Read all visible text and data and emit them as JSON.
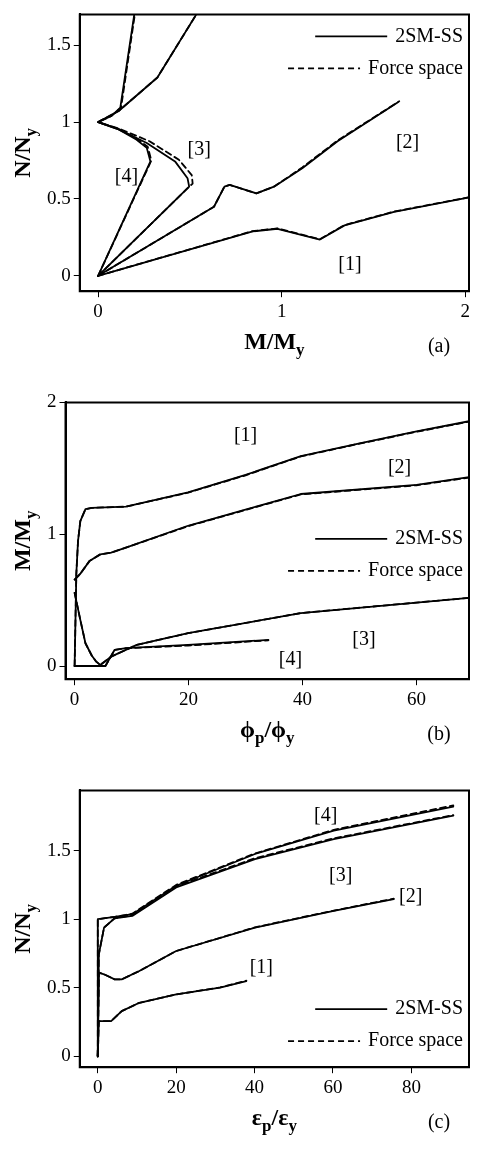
{
  "chart_data": [
    {
      "type": "line",
      "xlabel": "M/M$_{y}$",
      "ylabel": "N/N$_{y}$",
      "xlim": [
        -0.1,
        2.02
      ],
      "ylim": [
        -0.1,
        1.7
      ],
      "xticks": [
        0,
        1,
        2
      ],
      "yticks": [
        0,
        0.5,
        1,
        1.5
      ],
      "legend": "top right",
      "annotations": [
        "[1]",
        "[2]",
        "[3]",
        "[4]",
        "(a)"
      ],
      "series": [
        {
          "name": "2SM-SS",
          "color": "#000000",
          "line_style": "solid",
          "x": [
            0,
            0.842,
            0.977,
            1.208,
            1.342,
            1.612,
            2.015
          ],
          "values": [
            0,
            0.289,
            0.306,
            0.236,
            0.328,
            0.416,
            0.508
          ]
        },
        {
          "color": "#000000",
          "line_style": "solid",
          "x": [
            0,
            0.631,
            0.688,
            0.717,
            0.862,
            0.958,
            1.112,
            1.304,
            1.631
          ],
          "values": [
            0,
            0.449,
            0.58,
            0.591,
            0.536,
            0.58,
            0.7,
            0.875,
            1.127
          ]
        },
        {
          "color": "#000000",
          "line_style": "solid",
          "x": [
            0,
            0.496,
            0.487,
            0.419,
            0.265,
            0.112,
            0,
            0.112,
            0.323,
            0.535
          ],
          "values": [
            0,
            0.58,
            0.635,
            0.744,
            0.864,
            0.952,
            1,
            1.072,
            1.29,
            1.7
          ]
        },
        {
          "color": "#000000",
          "line_style": "solid",
          "x": [
            0,
            0.285,
            0.265,
            0.208,
            0.112,
            0,
            0.073,
            0.121,
            0.197
          ],
          "values": [
            0,
            0.744,
            0.832,
            0.886,
            0.952,
            1,
            1.04,
            1.094,
            1.7
          ]
        },
        {
          "name": "Force space",
          "color": "#000000",
          "line_style": "dashed",
          "x": [
            0,
            0.842,
            0.977,
            1.208,
            1.342,
            1.612,
            2.015
          ],
          "values": [
            0,
            0.291,
            0.308,
            0.238,
            0.33,
            0.418,
            0.51
          ]
        },
        {
          "color": "#000000",
          "line_style": "dashed",
          "x": [
            0,
            0.631,
            0.688,
            0.717,
            0.862,
            0.958,
            1.112,
            1.304,
            1.64
          ],
          "values": [
            0,
            0.449,
            0.58,
            0.591,
            0.536,
            0.58,
            0.705,
            0.88,
            1.135
          ]
        },
        {
          "color": "#000000",
          "line_style": "dashed",
          "x": [
            0,
            0.496,
            0.515,
            0.51,
            0.44,
            0.28,
            0.112,
            0,
            0.112,
            0.323,
            0.535
          ],
          "values": [
            0,
            0.58,
            0.6,
            0.655,
            0.755,
            0.875,
            0.958,
            1,
            1.072,
            1.29,
            1.7
          ]
        },
        {
          "color": "#000000",
          "line_style": "dashed",
          "x": [
            0,
            0.29,
            0.27,
            0.21,
            0.112,
            0,
            0.073,
            0.125,
            0.2
          ],
          "values": [
            0,
            0.75,
            0.84,
            0.892,
            0.955,
            1,
            1.04,
            1.094,
            1.7
          ]
        }
      ]
    },
    {
      "type": "line",
      "xlabel": "ϕ$_{p}$/ϕ$_{y}$",
      "ylabel": "M/M$_{y}$",
      "xlim": [
        -1.6,
        69.2
      ],
      "ylim": [
        -0.1,
        2
      ],
      "xticks": [
        0,
        20,
        40,
        60
      ],
      "yticks": [
        0,
        1,
        2
      ],
      "legend": "right",
      "annotations": [
        "[1]",
        "[2]",
        "[3]",
        "[4]",
        "(b)"
      ],
      "series": [
        {
          "name": "2SM-SS",
          "color": "#000000",
          "line_style": "solid",
          "x": [
            0,
            0.3,
            0.6,
            1,
            1.9,
            3,
            9,
            19.9,
            30,
            39.7,
            50,
            60,
            69.2
          ],
          "values": [
            0,
            0.7,
            0.95,
            1.1,
            1.19,
            1.2,
            1.209,
            1.318,
            1.45,
            1.593,
            1.69,
            1.78,
            1.857
          ]
        },
        {
          "color": "#000000",
          "line_style": "solid",
          "x": [
            0,
            1,
            2.6,
            4.5,
            6.4,
            9,
            19.9,
            39.7,
            60,
            69.2
          ],
          "values": [
            0.656,
            0.7,
            0.796,
            0.847,
            0.86,
            0.898,
            1.064,
            1.305,
            1.374,
            1.433
          ]
        },
        {
          "color": "#000000",
          "line_style": "solid",
          "x": [
            0,
            1,
            1.9,
            3,
            3.8,
            4.5,
            6.4,
            10.9,
            19.9,
            39.7,
            69.2
          ],
          "values": [
            0.555,
            0.35,
            0.173,
            0.08,
            0.033,
            0.008,
            0.071,
            0.16,
            0.249,
            0.402,
            0.517
          ]
        },
        {
          "color": "#000000",
          "line_style": "solid",
          "x": [
            0,
            5.4,
            6.2,
            7,
            9,
            19.9,
            34
          ],
          "values": [
            0,
            0,
            0.06,
            0.122,
            0.135,
            0.16,
            0.198
          ]
        },
        {
          "name": "Force space",
          "color": "#000000",
          "line_style": "dashed",
          "x": [
            0,
            0.3,
            0.6,
            1,
            1.9,
            3,
            9,
            19.9,
            30,
            39.7,
            50,
            60,
            69.2
          ],
          "values": [
            0,
            0.7,
            0.95,
            1.1,
            1.19,
            1.2,
            1.209,
            1.315,
            1.447,
            1.59,
            1.687,
            1.777,
            1.854
          ]
        },
        {
          "color": "#000000",
          "line_style": "dashed",
          "x": [
            0,
            1,
            2.6,
            4.5,
            6.4,
            9,
            19.9,
            39.7,
            60,
            69.2
          ],
          "values": [
            0.656,
            0.7,
            0.796,
            0.847,
            0.86,
            0.898,
            1.061,
            1.302,
            1.371,
            1.43
          ]
        },
        {
          "color": "#000000",
          "line_style": "dashed",
          "x": [
            0,
            1,
            1.9,
            3,
            3.8,
            4.5,
            6.4,
            10.9,
            19.9,
            39.7,
            69.2
          ],
          "values": [
            0.555,
            0.35,
            0.173,
            0.08,
            0.033,
            0.008,
            0.071,
            0.16,
            0.249,
            0.402,
            0.517
          ]
        },
        {
          "color": "#000000",
          "line_style": "dashed",
          "x": [
            0,
            5.4,
            6.2,
            7,
            9,
            19.9,
            34
          ],
          "values": [
            0,
            0,
            0.06,
            0.122,
            0.135,
            0.155,
            0.195
          ]
        }
      ]
    },
    {
      "type": "line",
      "xlabel": "ε$_{p}$/ε$_{y}$",
      "ylabel": "N/N$_{y}$",
      "xlim": [
        -4.6,
        94.7
      ],
      "ylim": [
        -0.08,
        1.94
      ],
      "xticks": [
        0,
        20,
        40,
        60,
        80
      ],
      "yticks": [
        0,
        0.5,
        1,
        1.5
      ],
      "legend": "bottom right",
      "annotations": [
        "[1]",
        "[2]",
        "[3]",
        "[4]",
        "(c)"
      ],
      "series": [
        {
          "name": "2SM-SS",
          "color": "#000000",
          "line_style": "solid",
          "x": [
            0,
            0.27,
            3.4,
            6.1,
            10.6,
            20,
            31.2,
            37.9
          ],
          "values": [
            0,
            0.256,
            0.256,
            0.329,
            0.39,
            0.451,
            0.5,
            0.549
          ]
        },
        {
          "color": "#000000",
          "line_style": "solid",
          "x": [
            0,
            0.27,
            1.6,
            4.3,
            6.1,
            10.6,
            20,
            40.1,
            60.2,
            75.5
          ],
          "values": [
            0,
            0.61,
            0.598,
            0.561,
            0.561,
            0.622,
            0.768,
            0.939,
            1.061,
            1.146
          ]
        },
        {
          "color": "#000000",
          "line_style": "solid",
          "x": [
            0,
            0.27,
            1.6,
            4.3,
            8.8,
            20,
            40.1,
            60.2,
            90.7
          ],
          "values": [
            0,
            0.744,
            0.939,
            1.007,
            1.024,
            1.232,
            1.439,
            1.585,
            1.756
          ]
        },
        {
          "color": "#000000",
          "line_style": "solid",
          "x": [
            0,
            0,
            4.3,
            8.8,
            20,
            40.1,
            60.2,
            90.7
          ],
          "values": [
            0,
            1,
            1.017,
            1.037,
            1.244,
            1.476,
            1.646,
            1.822
          ]
        },
        {
          "name": "Force space",
          "color": "#000000",
          "line_style": "dashed",
          "x": [
            0,
            0.27,
            3.4,
            6.1,
            10.6,
            20,
            31.2,
            37.9
          ],
          "values": [
            0,
            0.256,
            0.256,
            0.329,
            0.39,
            0.451,
            0.502,
            0.551
          ]
        },
        {
          "color": "#000000",
          "line_style": "dashed",
          "x": [
            0,
            0.27,
            1.6,
            4.3,
            6.1,
            10.6,
            20,
            40.1,
            60.2,
            75.5
          ],
          "values": [
            0,
            0.61,
            0.598,
            0.561,
            0.561,
            0.622,
            0.768,
            0.941,
            1.063,
            1.15
          ]
        },
        {
          "color": "#000000",
          "line_style": "dashed",
          "x": [
            0,
            0.27,
            1.6,
            4.3,
            8.8,
            20,
            40.1,
            60.2,
            90.7
          ],
          "values": [
            0,
            0.744,
            0.939,
            1.007,
            1.03,
            1.24,
            1.445,
            1.59,
            1.76
          ]
        },
        {
          "color": "#000000",
          "line_style": "dashed",
          "x": [
            0,
            0,
            4.3,
            8.8,
            20,
            40.1,
            60.2,
            90.7
          ],
          "values": [
            0,
            1,
            1.017,
            1.04,
            1.25,
            1.48,
            1.652,
            1.83
          ]
        }
      ]
    }
  ]
}
